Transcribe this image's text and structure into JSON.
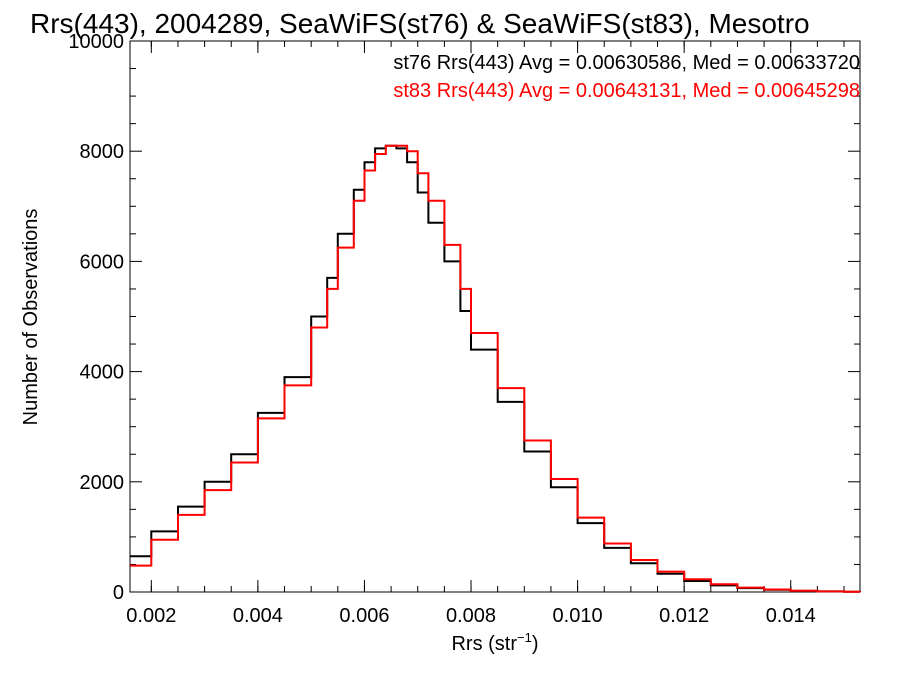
{
  "chart_data": {
    "type": "line",
    "title": "Rrs(443), 2004289, SeaWiFS(st76) & SeaWiFS(st83), Mesotro",
    "xlabel_main": "Rrs (str",
    "xlabel_sup": "−1",
    "xlabel_close": ")",
    "ylabel": "Number of Observations",
    "xlim": [
      0.0016,
      0.0153
    ],
    "ylim": [
      0,
      10000
    ],
    "xticks": [
      0.002,
      0.004,
      0.006,
      0.008,
      0.01,
      0.012,
      0.014
    ],
    "xtick_labels": [
      "0.002",
      "0.004",
      "0.006",
      "0.008",
      "0.010",
      "0.012",
      "0.014"
    ],
    "yticks": [
      0,
      2000,
      4000,
      6000,
      8000,
      10000
    ],
    "ytick_labels": [
      "0",
      "2000",
      "4000",
      "6000",
      "8000",
      "10000"
    ],
    "grid": false,
    "stats": [
      {
        "text": "st76 Rrs(443) Avg = 0.00630586, Med = 0.00633720",
        "color": "#000000"
      },
      {
        "text": "st83 Rrs(443) Avg = 0.00643131, Med = 0.00645298",
        "color": "#ff0000"
      }
    ],
    "series": [
      {
        "name": "st76",
        "color": "#000000",
        "x": [
          0.0016,
          0.002,
          0.0025,
          0.003,
          0.0035,
          0.004,
          0.0045,
          0.005,
          0.0053,
          0.0055,
          0.0058,
          0.006,
          0.0062,
          0.0064,
          0.0066,
          0.0068,
          0.007,
          0.0072,
          0.0075,
          0.0078,
          0.008,
          0.0085,
          0.009,
          0.0095,
          0.01,
          0.0105,
          0.011,
          0.0115,
          0.012,
          0.0125,
          0.013,
          0.0135,
          0.014,
          0.0145,
          0.015,
          0.0153
        ],
        "y": [
          650,
          1100,
          1550,
          2000,
          2500,
          3250,
          3900,
          5000,
          5700,
          6500,
          7300,
          7800,
          8050,
          8100,
          8050,
          7800,
          7250,
          6700,
          6000,
          5100,
          4400,
          3450,
          2550,
          1900,
          1250,
          800,
          520,
          330,
          200,
          120,
          70,
          40,
          20,
          10,
          5,
          2
        ]
      },
      {
        "name": "st83",
        "color": "#ff0000",
        "x": [
          0.0016,
          0.002,
          0.0025,
          0.003,
          0.0035,
          0.004,
          0.0045,
          0.005,
          0.0053,
          0.0055,
          0.0058,
          0.006,
          0.0062,
          0.0064,
          0.0066,
          0.0068,
          0.007,
          0.0072,
          0.0075,
          0.0078,
          0.008,
          0.0085,
          0.009,
          0.0095,
          0.01,
          0.0105,
          0.011,
          0.0115,
          0.012,
          0.0125,
          0.013,
          0.0135,
          0.014,
          0.0145,
          0.015,
          0.0153
        ],
        "y": [
          480,
          950,
          1400,
          1850,
          2350,
          3150,
          3750,
          4800,
          5500,
          6250,
          7100,
          7650,
          7950,
          8100,
          8100,
          8000,
          7600,
          7100,
          6300,
          5500,
          4700,
          3700,
          2750,
          2050,
          1350,
          880,
          580,
          370,
          230,
          140,
          80,
          45,
          22,
          11,
          5,
          2
        ]
      }
    ]
  }
}
